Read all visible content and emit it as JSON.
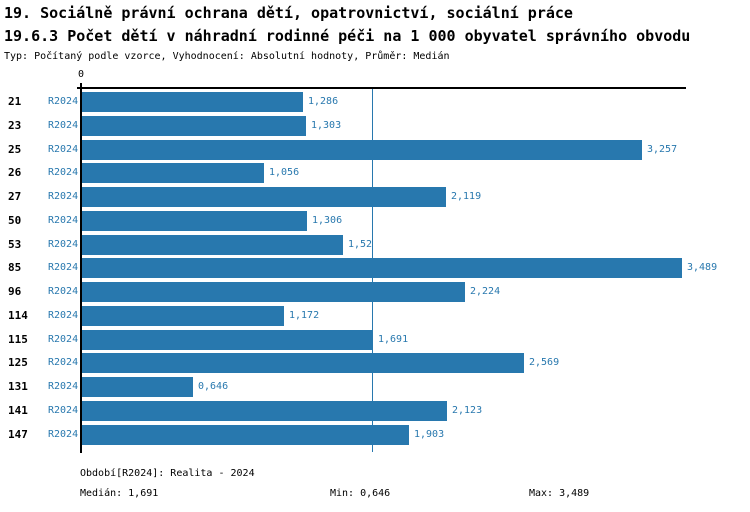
{
  "header": {
    "title": "19. Sociálně právní ochrana dětí, opatrovnictví, sociální práce",
    "subtitle": "19.6.3 Počet dětí v náhradní rodinné péči na 1 000 obyvatel správního obvodu",
    "meta": "Typ: Počítaný podle vzorce, Vyhodnocení: Absolutní hodnoty, Průměr: Medián"
  },
  "chart_data": {
    "type": "bar",
    "orientation": "horizontal",
    "title": "19.6.3 Počet dětí v náhradní rodinné péči na 1 000 obyvatel správního obvodu",
    "categories": [
      "21",
      "23",
      "25",
      "26",
      "27",
      "50",
      "53",
      "85",
      "96",
      "114",
      "115",
      "125",
      "131",
      "141",
      "147"
    ],
    "series": [
      {
        "name": "R2024",
        "values": [
          1.286,
          1.303,
          3.257,
          1.056,
          2.119,
          1.306,
          1.52,
          3.489,
          2.224,
          1.172,
          1.691,
          2.569,
          0.646,
          2.123,
          1.903
        ],
        "value_labels": [
          "1,286",
          "1,303",
          "3,257",
          "1,056",
          "2,119",
          "1,306",
          "1,52",
          "3,489",
          "2,224",
          "1,172",
          "1,691",
          "2,569",
          "0,646",
          "2,123",
          "1,903"
        ]
      }
    ],
    "xlabel": "",
    "ylabel": "",
    "xlim": [
      0,
      3.52
    ],
    "zero_tick_label": "0",
    "median_reference_line": 1.691,
    "grid": false,
    "legend": false,
    "bar_color": "#2878ae",
    "axis_color": "#000000"
  },
  "footer": {
    "period": "Období[R2024]: Realita - 2024",
    "median": "Medián: 1,691",
    "min": "Min: 0,646",
    "max": "Max: 3,489"
  },
  "colors": {
    "accent_blue": "#2878ae",
    "text_black": "#000000",
    "background": "#ffffff"
  }
}
